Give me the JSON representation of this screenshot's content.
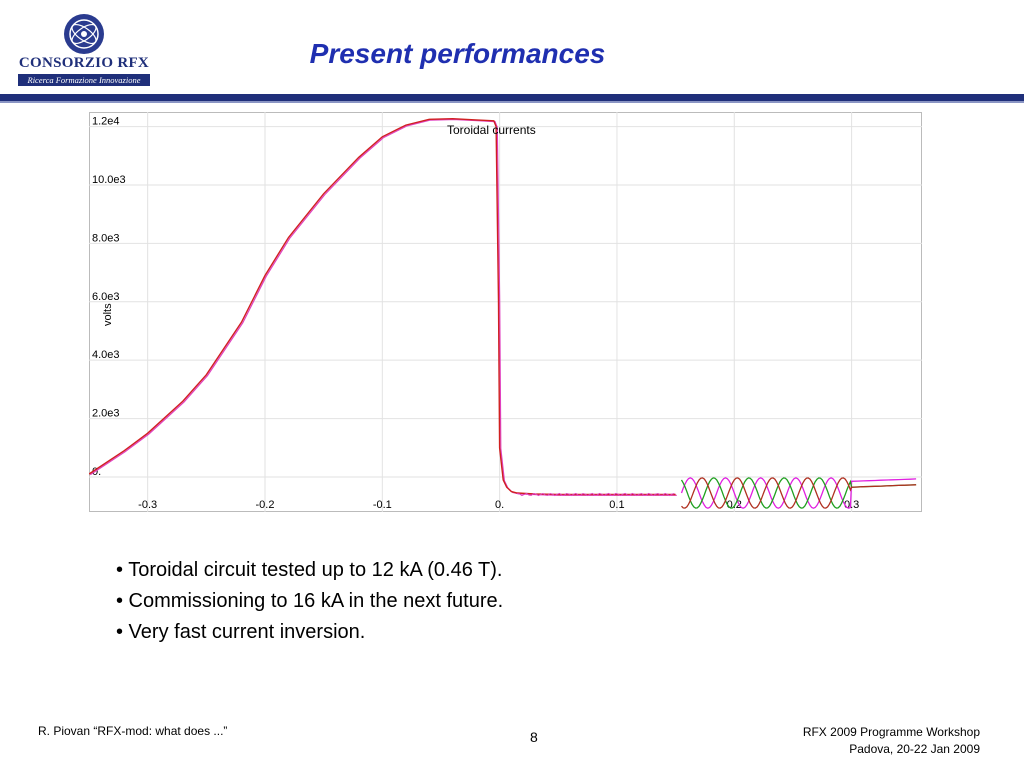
{
  "slide": {
    "title": "Present performances",
    "logo": {
      "name": "CONSORZIO RFX",
      "tagline": "Ricerca Formazione Innovazione"
    },
    "bullets": [
      "• Toroidal circuit tested up to 12 kA (0.46 T).",
      "• Commissioning to 16 kA in the next future.",
      "• Very fast current inversion."
    ],
    "footer": {
      "left": "R. Piovan “RFX-mod: what does ...”",
      "page": "8",
      "right_line1": "RFX 2009 Programme Workshop",
      "right_line2": "Padova,  20-22 Jan 2009"
    }
  },
  "chart_data": {
    "type": "line",
    "title": "Toroidal currents",
    "xlabel": "",
    "ylabel": "volts",
    "xlim": [
      -0.35,
      0.36
    ],
    "ylim": [
      -1200,
      12500
    ],
    "grid": true,
    "xticks": [
      -0.3,
      -0.2,
      -0.1,
      0,
      0.1,
      0.2,
      0.3
    ],
    "xtick_labels": [
      "-0.3",
      "-0.2",
      "-0.1",
      "0.",
      "0.1",
      "0.2",
      "0.3"
    ],
    "yticks": [
      0,
      2000,
      4000,
      6000,
      8000,
      10000,
      12000
    ],
    "ytick_labels": [
      "0.",
      "2.0e3",
      "4.0e3",
      "6.0e3",
      "8.0e3",
      "10.0e3",
      "1.2e4"
    ],
    "colors": {
      "main": "#d02020",
      "trace2": "#e040c0",
      "oscA": "#e020e0",
      "oscB": "#20a020",
      "oscC": "#b03020"
    },
    "series": [
      {
        "x": [
          -0.35,
          -0.32,
          -0.3,
          -0.27,
          -0.25,
          -0.22,
          -0.2,
          -0.18,
          -0.15,
          -0.12,
          -0.1,
          -0.08,
          -0.06,
          -0.04,
          -0.02,
          -0.005,
          -0.003,
          -0.001,
          0.0,
          0.003,
          0.006,
          0.01,
          0.015,
          0.03,
          0.05,
          0.1,
          0.15
        ],
        "y": [
          100,
          900,
          1500,
          2600,
          3500,
          5300,
          6900,
          8200,
          9700,
          10950,
          11650,
          12050,
          12250,
          12270,
          12230,
          12200,
          12000,
          6000,
          1000,
          -100,
          -350,
          -500,
          -550,
          -580,
          -600,
          -600,
          -600
        ]
      }
    ]
  }
}
